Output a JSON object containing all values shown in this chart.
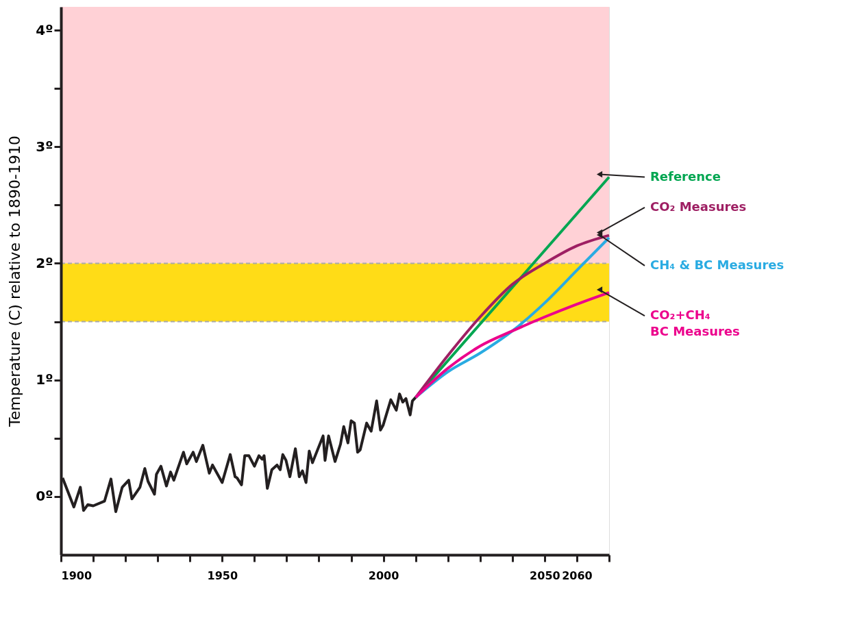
{
  "chart_data": {
    "type": "line",
    "ylabel": "Temperature (C) relative to 1890-1910",
    "xlim": [
      1900,
      2070
    ],
    "xticks": [
      1900,
      {
        "value": 1910,
        "label": null
      },
      {
        "value": 1920,
        "label": null
      },
      {
        "value": 1930,
        "label": null
      },
      {
        "value": 1940,
        "label": null
      },
      1950,
      {
        "value": 1960,
        "label": null
      },
      {
        "value": 1970,
        "label": null
      },
      {
        "value": 1980,
        "label": null
      },
      {
        "value": 1990,
        "label": null
      },
      2000,
      {
        "value": 2010,
        "label": null
      },
      {
        "value": 2020,
        "label": null
      },
      {
        "value": 2030,
        "label": null
      },
      {
        "value": 2040,
        "label": null
      },
      2050,
      2060,
      {
        "value": 2070,
        "label": null
      }
    ],
    "ylim": [
      -0.5,
      4.2
    ],
    "yticks": [
      {
        "value": 0,
        "label": "0º"
      },
      {
        "value": 0.5,
        "label": null
      },
      {
        "value": 1,
        "label": "1º"
      },
      {
        "value": 1.5,
        "label": null
      },
      {
        "value": 2,
        "label": "2º"
      },
      {
        "value": 2.5,
        "label": null
      },
      {
        "value": 3,
        "label": "3º"
      },
      {
        "value": 3.5,
        "label": null
      },
      {
        "value": 4,
        "label": "4º"
      }
    ],
    "grid": false,
    "marker": "none",
    "line_style": "solid",
    "bands": [
      {
        "axis": "y",
        "from": 2,
        "to": 4.2,
        "color": "#ffd1d6"
      },
      {
        "axis": "y",
        "from": 1.5,
        "to": 2,
        "color": "#ffdc17"
      }
    ],
    "ref_lines": [
      {
        "axis": "y",
        "value": 1.5,
        "color": "#aaaaaa",
        "line_style": "dashed"
      },
      {
        "axis": "y",
        "value": 2,
        "color": "#aaaaaa",
        "line_style": "dashed"
      }
    ],
    "series": [
      {
        "color": "#231f20",
        "x": [
          1900.5,
          1904,
          1906,
          1907,
          1908.3,
          1910,
          1913.5,
          1915.5,
          1917,
          1919,
          1921,
          1922,
          1924.5,
          1926,
          1927,
          1929,
          1929.6,
          1931,
          1932.7,
          1934,
          1935,
          1938,
          1939,
          1941,
          1942,
          1944,
          1946,
          1947,
          1950,
          1952.5,
          1954,
          1954.6,
          1956,
          1957,
          1958.3,
          1960,
          1961.4,
          1962.4,
          1963,
          1964,
          1965.4,
          1967,
          1968,
          1968.8,
          1969.8,
          1971,
          1972.7,
          1973.9,
          1974.9,
          1976,
          1977,
          1978,
          1981.3,
          1981.9,
          1983,
          1985,
          1986.7,
          1987.7,
          1989,
          1990,
          1991,
          1992,
          1992.8,
          1994.8,
          1996.2,
          1997.9,
          1999.1,
          1999.9,
          2002.3,
          2004,
          2005,
          2006,
          2007,
          2008.3,
          2009,
          2010
        ],
        "values": [
          0.16,
          -0.09,
          0.08,
          -0.12,
          -0.07,
          -0.08,
          -0.04,
          0.15,
          -0.13,
          0.08,
          0.14,
          -0.02,
          0.08,
          0.24,
          0.13,
          0.02,
          0.19,
          0.26,
          0.09,
          0.21,
          0.14,
          0.38,
          0.28,
          0.38,
          0.3,
          0.44,
          0.2,
          0.27,
          0.12,
          0.36,
          0.17,
          0.16,
          0.1,
          0.35,
          0.35,
          0.26,
          0.35,
          0.32,
          0.35,
          0.07,
          0.23,
          0.27,
          0.23,
          0.36,
          0.31,
          0.17,
          0.41,
          0.17,
          0.22,
          0.12,
          0.39,
          0.29,
          0.52,
          0.31,
          0.52,
          0.3,
          0.45,
          0.6,
          0.46,
          0.65,
          0.63,
          0.38,
          0.4,
          0.63,
          0.56,
          0.82,
          0.57,
          0.61,
          0.83,
          0.74,
          0.88,
          0.81,
          0.84,
          0.7,
          0.82,
          0.85
        ]
      },
      {
        "name": "Reference",
        "color": "#00a651",
        "x": [
          2010,
          2070
        ],
        "values": [
          0.85,
          2.74
        ]
      },
      {
        "name": "CO₂ Measures",
        "color": "#9e1f63",
        "x": [
          2010,
          2020,
          2030,
          2040,
          2050,
          2060,
          2070
        ],
        "values": [
          0.85,
          1.21,
          1.54,
          1.82,
          2.0,
          2.15,
          2.24
        ]
      },
      {
        "name": "CH₄ & BC Measures",
        "color": "#29abe2",
        "x": [
          2010,
          2020,
          2030,
          2040,
          2050,
          2060,
          2070
        ],
        "values": [
          0.85,
          1.07,
          1.23,
          1.42,
          1.66,
          1.94,
          2.22
        ]
      },
      {
        "name": "CO₂+CH₄\nBC Measures",
        "color": "#ec008c",
        "x": [
          2010,
          2020,
          2030,
          2040,
          2050,
          2060,
          2070
        ],
        "values": [
          0.85,
          1.1,
          1.29,
          1.42,
          1.54,
          1.65,
          1.75
        ]
      }
    ]
  }
}
